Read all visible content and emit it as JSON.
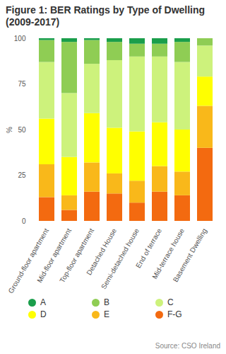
{
  "chart_data": {
    "type": "bar",
    "stacked": true,
    "title": "Figure 1: BER Ratings by Type of Dwelling (2009-2017)",
    "ylabel": "%",
    "source": "Source: CSO Ireland",
    "categories": [
      "Ground-floor apartment",
      "Mid-floor apartment",
      "Top-floor apartment",
      "Detached House",
      "Semi-detached house",
      "End of terrace",
      "Mid-terrace house",
      "Basement Dwelling"
    ],
    "series": [
      {
        "name": "A",
        "color": "#1a9e4b",
        "values": [
          1,
          2,
          1,
          2,
          3,
          3,
          2,
          0
        ]
      },
      {
        "name": "B",
        "color": "#8fcd54",
        "values": [
          12,
          28,
          13,
          10,
          7,
          7,
          11,
          4
        ]
      },
      {
        "name": "C",
        "color": "#cdf27c",
        "values": [
          31,
          35,
          27,
          37,
          41,
          36,
          37,
          17
        ]
      },
      {
        "name": "D",
        "color": "#ffff00",
        "values": [
          25,
          21,
          27,
          25,
          27,
          24,
          23,
          16
        ]
      },
      {
        "name": "E",
        "color": "#f9b81a",
        "values": [
          18,
          8,
          16,
          11,
          12,
          14,
          13,
          23
        ]
      },
      {
        "name": "F-G",
        "color": "#f36a10",
        "values": [
          13,
          6,
          16,
          15,
          10,
          16,
          14,
          40
        ]
      }
    ],
    "ylim": [
      0,
      100
    ],
    "yticks": [
      0,
      25,
      50,
      75,
      100
    ],
    "grid": false,
    "legend": "bottom"
  }
}
